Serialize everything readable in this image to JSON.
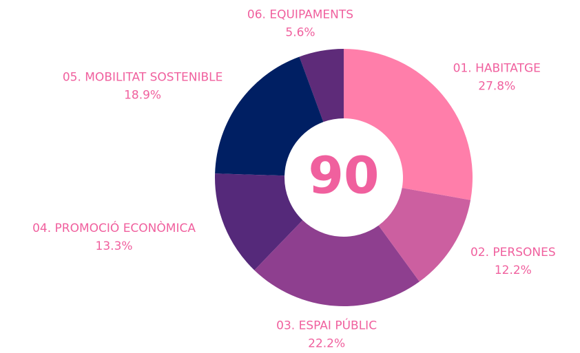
{
  "chart_data": {
    "type": "donut",
    "center_label": "90",
    "categories": [
      "01. HABITATGE",
      "02. PERSONES",
      "03. ESPAI PÚBLIC",
      "04. PROMOCIÓ ECONÒMICA",
      "05. MOBILITAT SOSTENIBLE",
      "06. EQUIPAMENTS"
    ],
    "values": [
      27.8,
      12.2,
      22.2,
      13.3,
      18.9,
      5.6
    ],
    "value_labels": [
      "27.8%",
      "12.2%",
      "22.2%",
      "13.3%",
      "18.9%",
      "5.6%"
    ],
    "colors": [
      "#ff7eaa",
      "#cc5fa0",
      "#8e3f8f",
      "#55297a",
      "#001f63",
      "#5e2b79"
    ]
  }
}
